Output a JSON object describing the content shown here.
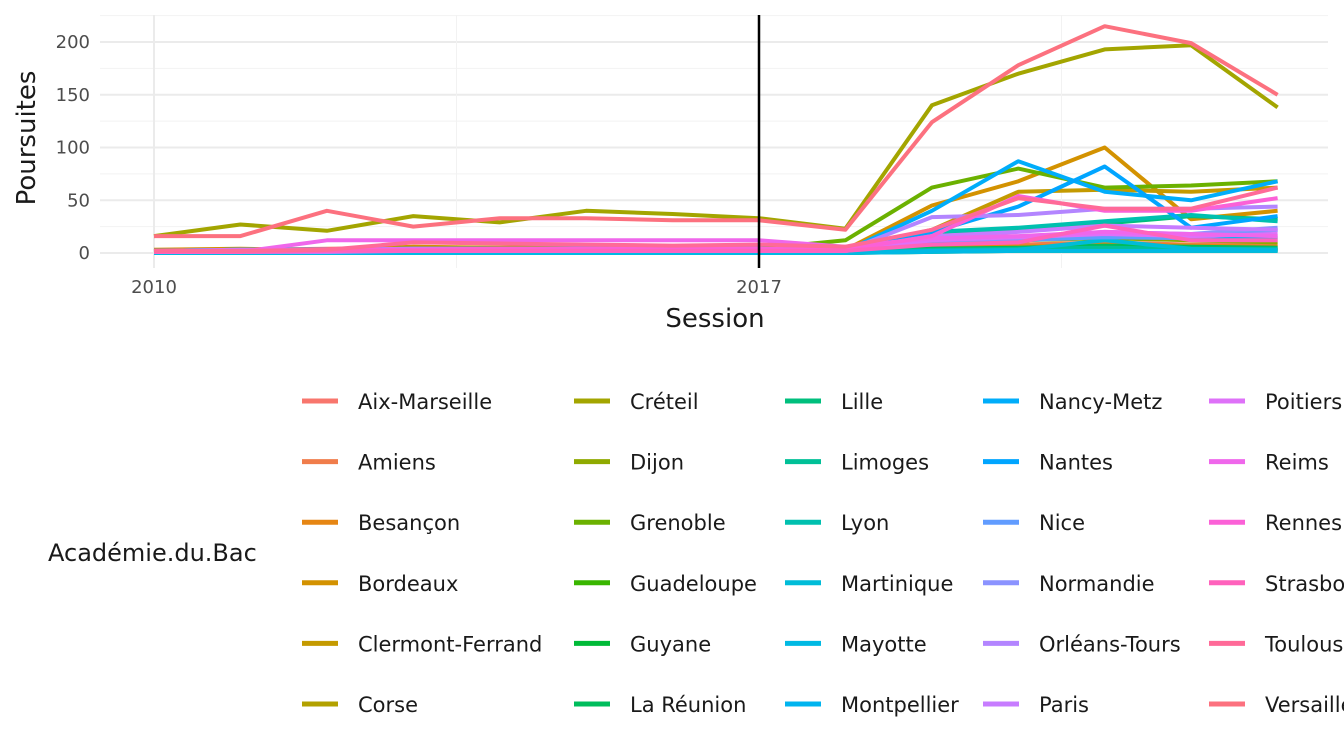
{
  "chart_data": {
    "type": "line",
    "xlabel": "Session",
    "ylabel": "Poursuites",
    "x_ticks": [
      "2010",
      "2017"
    ],
    "y_ticks": [
      "0",
      "50",
      "100",
      "150",
      "200"
    ],
    "xlim": [
      2010,
      2023
    ],
    "ylim": [
      0,
      220
    ],
    "reference_line_x": 2017,
    "grid": true,
    "legend_title": "Académie.du.Bac",
    "legend_position": "bottom",
    "x": [
      2010,
      2011,
      2012,
      2013,
      2014,
      2015,
      2016,
      2017,
      2018,
      2019,
      2020,
      2021,
      2022,
      2023
    ],
    "series": [
      {
        "name": "Aix-Marseille",
        "color": "#F8766D",
        "values": [
          2,
          3,
          4,
          5,
          5,
          6,
          5,
          6,
          4,
          12,
          14,
          18,
          15,
          14
        ]
      },
      {
        "name": "Amiens",
        "color": "#F07D4B",
        "values": [
          1,
          1,
          2,
          2,
          2,
          2,
          2,
          2,
          2,
          6,
          8,
          10,
          8,
          8
        ]
      },
      {
        "name": "Besançon",
        "color": "#E68613",
        "values": [
          1,
          1,
          1,
          1,
          1,
          2,
          1,
          2,
          2,
          5,
          6,
          8,
          7,
          6
        ]
      },
      {
        "name": "Bordeaux",
        "color": "#D39200",
        "values": [
          3,
          4,
          3,
          6,
          5,
          6,
          6,
          5,
          3,
          45,
          68,
          100,
          32,
          40
        ]
      },
      {
        "name": "Clermont-Ferrand",
        "color": "#C49A00",
        "values": [
          2,
          2,
          2,
          3,
          3,
          3,
          3,
          3,
          3,
          22,
          58,
          60,
          58,
          62
        ]
      },
      {
        "name": "Corse",
        "color": "#B2A100",
        "values": [
          0,
          0,
          0,
          0,
          0,
          0,
          0,
          0,
          0,
          2,
          3,
          4,
          3,
          3
        ]
      },
      {
        "name": "Créteil",
        "color": "#A3A500",
        "values": [
          16,
          27,
          21,
          35,
          29,
          40,
          37,
          33,
          23,
          140,
          170,
          193,
          197,
          138
        ]
      },
      {
        "name": "Dijon",
        "color": "#8FAA00",
        "values": [
          1,
          2,
          2,
          2,
          2,
          2,
          2,
          2,
          2,
          8,
          12,
          14,
          12,
          10
        ]
      },
      {
        "name": "Grenoble",
        "color": "#6BB100",
        "values": [
          2,
          3,
          3,
          4,
          4,
          4,
          4,
          4,
          12,
          62,
          80,
          62,
          64,
          68
        ]
      },
      {
        "name": "Guadeloupe",
        "color": "#39B600",
        "values": [
          0,
          0,
          0,
          0,
          0,
          0,
          0,
          0,
          0,
          2,
          3,
          4,
          3,
          3
        ]
      },
      {
        "name": "Guyane",
        "color": "#00BA38",
        "values": [
          0,
          0,
          0,
          0,
          0,
          0,
          0,
          0,
          0,
          1,
          2,
          2,
          2,
          2
        ]
      },
      {
        "name": "La Réunion",
        "color": "#00BD5C",
        "values": [
          0,
          1,
          1,
          1,
          1,
          1,
          1,
          1,
          1,
          4,
          5,
          7,
          6,
          5
        ]
      },
      {
        "name": "Lille",
        "color": "#00BF7D",
        "values": [
          2,
          3,
          3,
          4,
          4,
          4,
          4,
          4,
          3,
          20,
          22,
          28,
          35,
          32
        ]
      },
      {
        "name": "Limoges",
        "color": "#00C097",
        "values": [
          0,
          0,
          0,
          1,
          1,
          1,
          1,
          1,
          1,
          3,
          4,
          5,
          4,
          4
        ]
      },
      {
        "name": "Lyon",
        "color": "#00C0AF",
        "values": [
          2,
          3,
          3,
          4,
          4,
          4,
          4,
          4,
          3,
          20,
          24,
          30,
          36,
          30
        ]
      },
      {
        "name": "Martinique",
        "color": "#00BCD8",
        "values": [
          0,
          0,
          0,
          0,
          0,
          0,
          0,
          0,
          0,
          2,
          3,
          12,
          4,
          3
        ]
      },
      {
        "name": "Mayotte",
        "color": "#00B9E3",
        "values": [
          0,
          0,
          0,
          0,
          0,
          0,
          0,
          0,
          0,
          1,
          2,
          2,
          2,
          2
        ]
      },
      {
        "name": "Montpellier",
        "color": "#00B4EF",
        "values": [
          1,
          1,
          2,
          2,
          2,
          2,
          2,
          2,
          2,
          10,
          14,
          18,
          16,
          14
        ]
      },
      {
        "name": "Nancy-Metz",
        "color": "#00ADFA",
        "values": [
          2,
          2,
          3,
          3,
          3,
          3,
          3,
          3,
          2,
          40,
          87,
          58,
          50,
          68
        ]
      },
      {
        "name": "Nantes",
        "color": "#00A5FF",
        "values": [
          2,
          3,
          3,
          4,
          4,
          4,
          4,
          4,
          3,
          20,
          44,
          82,
          24,
          35
        ]
      },
      {
        "name": "Nice",
        "color": "#619CFF",
        "values": [
          1,
          2,
          2,
          2,
          2,
          2,
          2,
          2,
          2,
          10,
          12,
          15,
          14,
          22
        ]
      },
      {
        "name": "Normandie",
        "color": "#8B93FF",
        "values": [
          1,
          2,
          2,
          2,
          2,
          2,
          2,
          2,
          2,
          12,
          14,
          20,
          18,
          24
        ]
      },
      {
        "name": "Orléans-Tours",
        "color": "#B385FF",
        "values": [
          1,
          2,
          2,
          2,
          2,
          2,
          2,
          2,
          2,
          34,
          36,
          42,
          42,
          44
        ]
      },
      {
        "name": "Paris",
        "color": "#C77CFF",
        "values": [
          2,
          3,
          3,
          4,
          4,
          4,
          4,
          4,
          3,
          16,
          20,
          26,
          24,
          22
        ]
      },
      {
        "name": "Poitiers",
        "color": "#DE71F8",
        "values": [
          1,
          1,
          1,
          2,
          2,
          2,
          2,
          2,
          2,
          12,
          15,
          18,
          16,
          18
        ]
      },
      {
        "name": "Reims",
        "color": "#EF67EB",
        "values": [
          1,
          1,
          12,
          12,
          12,
          12,
          12,
          12,
          6,
          14,
          16,
          20,
          18,
          16
        ]
      },
      {
        "name": "Rennes",
        "color": "#FB61D7",
        "values": [
          2,
          2,
          3,
          3,
          4,
          4,
          4,
          4,
          3,
          16,
          54,
          40,
          40,
          52
        ]
      },
      {
        "name": "Strasbourg",
        "color": "#FF62BC",
        "values": [
          1,
          1,
          2,
          2,
          2,
          2,
          2,
          2,
          2,
          8,
          10,
          26,
          12,
          12
        ]
      },
      {
        "name": "Toulouse",
        "color": "#FF6A98",
        "values": [
          2,
          2,
          3,
          10,
          9,
          8,
          7,
          8,
          6,
          22,
          52,
          42,
          42,
          62
        ]
      },
      {
        "name": "Versailles",
        "color": "#FC717F",
        "values": [
          16,
          16,
          40,
          25,
          33,
          33,
          31,
          31,
          22,
          124,
          178,
          215,
          199,
          150
        ]
      }
    ]
  }
}
